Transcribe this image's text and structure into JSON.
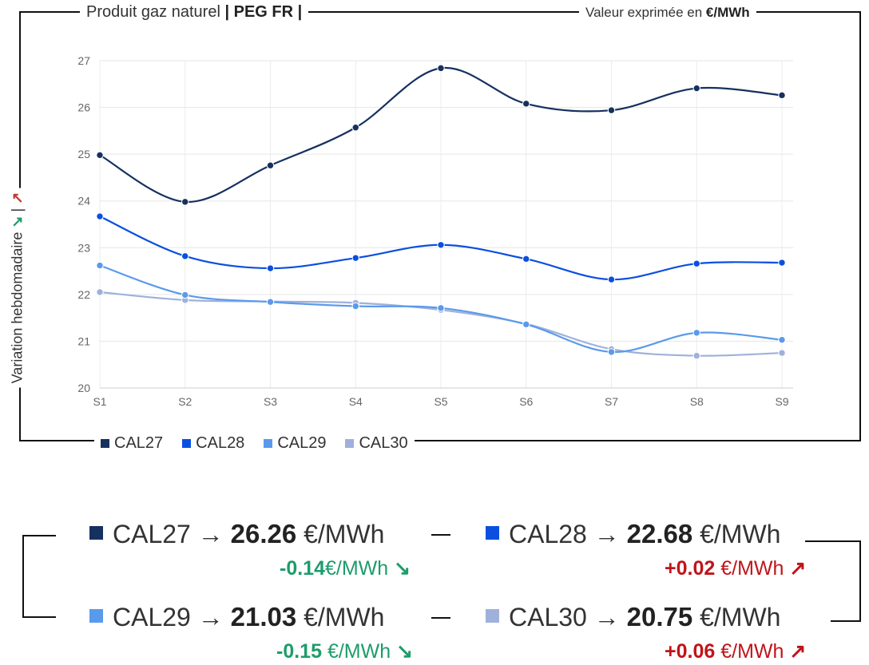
{
  "header": {
    "product_prefix": "Produit gaz naturel",
    "product_bold": "| PEG FR |",
    "unit_prefix": "Valeur exprimée en",
    "unit_bold": "€/MWh"
  },
  "side_label": {
    "text": "Variation hebdomadaire",
    "down_arrow": "↘",
    "separator": "|",
    "up_arrow": "↗"
  },
  "chart_data": {
    "type": "line",
    "categories": [
      "S1",
      "S2",
      "S3",
      "S4",
      "S5",
      "S6",
      "S7",
      "S8",
      "S9"
    ],
    "ylim": [
      20,
      27
    ],
    "yticks": [
      20,
      21,
      22,
      23,
      24,
      25,
      26,
      27
    ],
    "grid": true,
    "legend_position": "bottom-left",
    "series": [
      {
        "name": "CAL27",
        "color": "#16305f",
        "values": [
          24.98,
          23.98,
          24.76,
          25.57,
          26.84,
          26.08,
          25.94,
          26.41,
          26.26
        ]
      },
      {
        "name": "CAL28",
        "color": "#0a4fe0",
        "values": [
          23.67,
          22.82,
          22.56,
          22.78,
          23.06,
          22.76,
          22.32,
          22.66,
          22.68
        ]
      },
      {
        "name": "CAL29",
        "color": "#5a9aec",
        "values": [
          22.62,
          21.99,
          21.84,
          21.75,
          21.71,
          21.36,
          20.77,
          21.18,
          21.03
        ]
      },
      {
        "name": "CAL30",
        "color": "#9fb1da",
        "values": [
          22.05,
          21.88,
          21.85,
          21.82,
          21.67,
          21.37,
          20.83,
          20.69,
          20.75
        ]
      }
    ]
  },
  "summary": [
    {
      "name": "CAL27",
      "arrow": "→",
      "value": "26.26",
      "unit": "€/MWh",
      "delta": "-0.14",
      "delta_unit": "€/MWh",
      "delta_arrow": "↘",
      "color": "#16305f"
    },
    {
      "name": "CAL28",
      "arrow": "→",
      "value": "22.68",
      "unit": "€/MWh",
      "delta": "+0.02",
      "delta_unit": "€/MWh",
      "delta_arrow": "↗",
      "color": "#0a4fe0"
    },
    {
      "name": "CAL29",
      "arrow": "→",
      "value": "21.03",
      "unit": "€/MWh",
      "delta": "-0.15",
      "delta_unit": "€/MWh",
      "delta_arrow": "↘",
      "color": "#5a9aec"
    },
    {
      "name": "CAL30",
      "arrow": "→",
      "value": "20.75",
      "unit": "€/MWh",
      "delta": "+0.06",
      "delta_unit": "€/MWh",
      "delta_arrow": "↗",
      "color": "#9fb1da"
    }
  ]
}
